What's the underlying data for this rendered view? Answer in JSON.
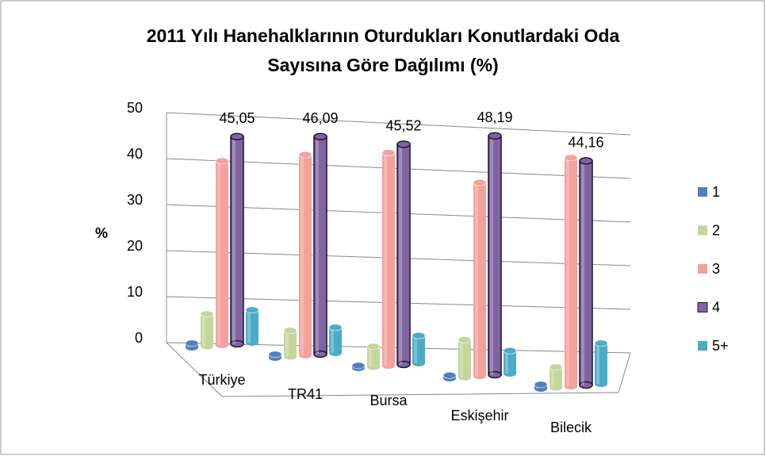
{
  "chart_data": {
    "type": "bar3d",
    "title_lines": [
      "2011 Yılı Hanehalklarının Oturdukları Konutlardaki Oda",
      "Sayısına Göre Dağılımı (%)"
    ],
    "y_label": "%",
    "categories": [
      "Türkiye",
      "TR41",
      "Bursa",
      "Eskişehir",
      "Bilecik"
    ],
    "series": [
      {
        "name": "1",
        "color": "#4f81bd",
        "values": [
          0.9,
          0.7,
          0.5,
          0.6,
          0.8
        ]
      },
      {
        "name": "2",
        "color": "#c3d69b",
        "values": [
          7.0,
          5.5,
          4.2,
          7.5,
          4.0
        ]
      },
      {
        "name": "3",
        "color": "#f2a19b",
        "values": [
          40.0,
          42.5,
          44.0,
          39.0,
          45.0
        ]
      },
      {
        "name": "4",
        "color": "#8064a2",
        "values": [
          45.05,
          46.09,
          45.52,
          48.19,
          44.16
        ],
        "value_labels": [
          "45,05",
          "46,09",
          "45,52",
          "48,19",
          "44,16"
        ]
      },
      {
        "name": "5+",
        "color": "#4bacc6",
        "values": [
          7.1,
          5.4,
          5.7,
          4.6,
          8.0
        ]
      }
    ],
    "ylim": [
      0,
      50
    ],
    "yticks": [
      0,
      10,
      20,
      30,
      40,
      50
    ],
    "grid": true,
    "legend": "right"
  }
}
